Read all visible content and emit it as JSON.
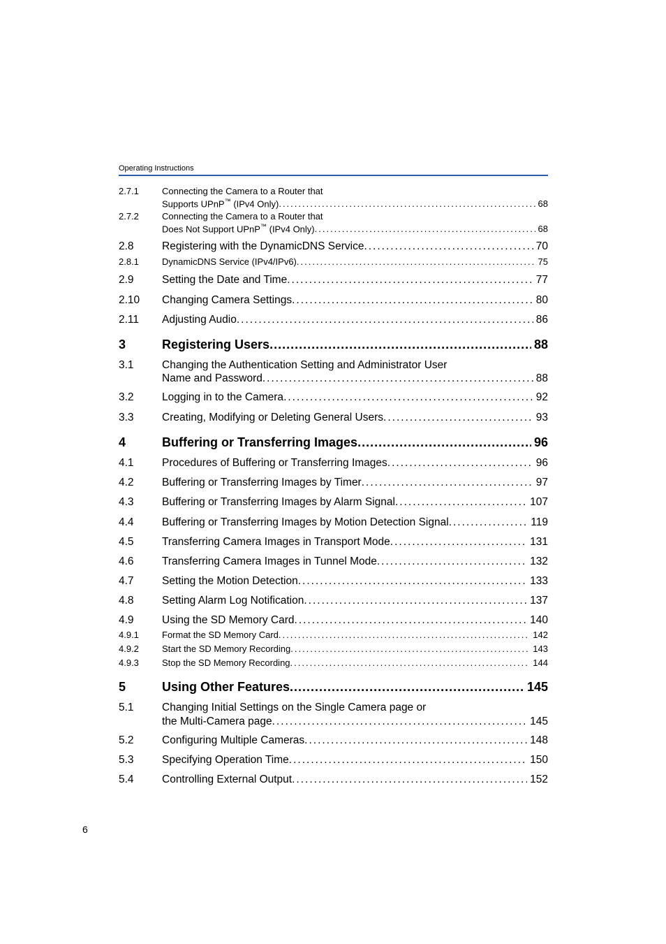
{
  "header": "Operating Instructions",
  "page_number": "6",
  "entries": [
    {
      "num": "2.7.1",
      "title_a": "Connecting the Camera to a Router that",
      "title_b": "Supports UPnP",
      "tm": true,
      "title_c": " (IPv4 Only)",
      "page": "68",
      "level": "sub",
      "wrap": true
    },
    {
      "num": "2.7.2",
      "title_a": "Connecting the Camera to a Router that",
      "title_b": "Does Not Support UPnP",
      "tm": true,
      "title_c": " (IPv4 Only)",
      "page": "68",
      "level": "sub",
      "wrap": true
    },
    {
      "num": "2.8",
      "title": "Registering with the DynamicDNS Service",
      "page": "70",
      "level": "n"
    },
    {
      "num": "2.8.1",
      "title": "DynamicDNS Service (IPv4/IPv6)",
      "page": "75",
      "level": "sub"
    },
    {
      "num": "2.9",
      "title": "Setting the Date and Time",
      "page": "77",
      "level": "n"
    },
    {
      "num": "2.10",
      "title": "Changing Camera Settings",
      "page": "80",
      "level": "n"
    },
    {
      "num": "2.11",
      "title": "Adjusting Audio",
      "page": "86",
      "level": "n"
    },
    {
      "num": "3",
      "title": "Registering Users",
      "page": "88",
      "level": "bold"
    },
    {
      "num": "3.1",
      "title_a": "Changing the Authentication Setting and Administrator User",
      "title_b": "Name and Password",
      "page": "88",
      "level": "n",
      "wrap": true
    },
    {
      "num": "3.2",
      "title": "Logging in to the Camera",
      "page": "92",
      "level": "n"
    },
    {
      "num": "3.3",
      "title": "Creating, Modifying or Deleting General Users",
      "page": "93",
      "level": "n"
    },
    {
      "num": "4",
      "title": "Buffering or Transferring Images",
      "page": "96",
      "level": "bold"
    },
    {
      "num": "4.1",
      "title": "Procedures of Buffering or Transferring Images",
      "page": "96",
      "level": "n"
    },
    {
      "num": "4.2",
      "title": "Buffering or Transferring Images by Timer",
      "page": "97",
      "level": "n"
    },
    {
      "num": "4.3",
      "title": "Buffering or Transferring Images by Alarm Signal",
      "page": "107",
      "level": "n"
    },
    {
      "num": "4.4",
      "title": "Buffering or Transferring Images by Motion Detection Signal",
      "page": "119",
      "level": "n"
    },
    {
      "num": "4.5",
      "title": "Transferring Camera Images in Transport Mode",
      "page": "131",
      "level": "n"
    },
    {
      "num": "4.6",
      "title": "Transferring Camera Images in Tunnel Mode",
      "page": "132",
      "level": "n"
    },
    {
      "num": "4.7",
      "title": "Setting the Motion Detection",
      "page": "133",
      "level": "n"
    },
    {
      "num": "4.8",
      "title": "Setting Alarm Log Notification",
      "page": "137",
      "level": "n"
    },
    {
      "num": "4.9",
      "title": "Using the SD Memory Card",
      "page": "140",
      "level": "n"
    },
    {
      "num": "4.9.1",
      "title": "Format the SD Memory Card",
      "page": "142",
      "level": "sub"
    },
    {
      "num": "4.9.2",
      "title": "Start the SD Memory Recording",
      "page": "143",
      "level": "sub"
    },
    {
      "num": "4.9.3",
      "title": "Stop the SD Memory Recording",
      "page": "144",
      "level": "sub"
    },
    {
      "num": "5",
      "title": "Using Other Features",
      "page": "145",
      "level": "bold"
    },
    {
      "num": "5.1",
      "title_a": "Changing Initial Settings on the Single Camera page or",
      "title_b": "the Multi-Camera page",
      "page": "145",
      "level": "n",
      "wrap": true
    },
    {
      "num": "5.2",
      "title": "Configuring Multiple Cameras",
      "page": "148",
      "level": "n"
    },
    {
      "num": "5.3",
      "title": "Specifying Operation Time",
      "page": "150",
      "level": "n"
    },
    {
      "num": "5.4",
      "title": "Controlling External Output",
      "page": "152",
      "level": "n"
    }
  ]
}
